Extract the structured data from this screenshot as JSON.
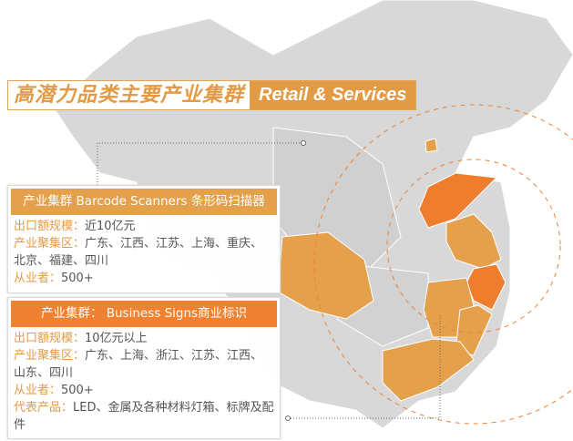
{
  "title": {
    "cn": "高潜力品类主要产业集群",
    "en": "Retail & Services"
  },
  "colors": {
    "accent_light": "#e5a04c",
    "accent_dark": "#ef8232",
    "map_gray": "#d6d6d6"
  },
  "clusters": [
    {
      "header": "产业集群 Barcode Scanners 条形码扫描器",
      "rows": [
        {
          "label": "出口额规模：",
          "value": "近10亿元"
        },
        {
          "label": "产业聚集区：",
          "value": "广东、江西、江苏、上海、重庆、北京、福建、四川"
        },
        {
          "label": "从业者：",
          "value": "500+"
        }
      ]
    },
    {
      "header": "产业集群： Business Signs商业标识",
      "rows": [
        {
          "label": "出口额规模：",
          "value": "10亿元以上"
        },
        {
          "label": "产业聚集区：",
          "value": "广东、上海、浙江、江苏、江西、山东、四川"
        },
        {
          "label": "从业者：",
          "value": "500+"
        },
        {
          "label": "代表产品：",
          "value": "LED、金属及各种材料灯箱、标牌及配件"
        }
      ]
    }
  ]
}
